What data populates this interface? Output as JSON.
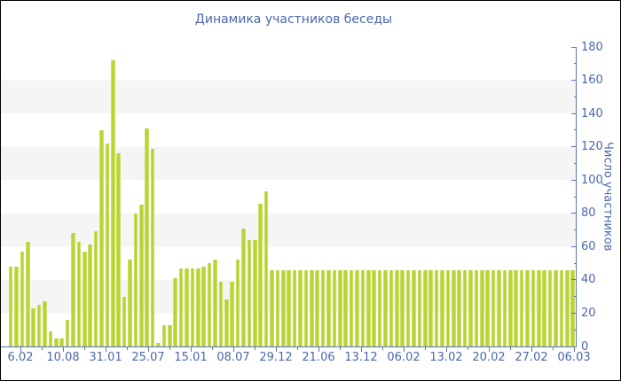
{
  "title": "Динамика участников беседы",
  "y_axis": {
    "label": "Число участников",
    "min": 0,
    "max": 180,
    "major_step": 20,
    "minor_step": 10,
    "tick_labels": [
      "0",
      "20",
      "40",
      "60",
      "80",
      "100",
      "120",
      "140",
      "160",
      "180"
    ]
  },
  "x_axis": {
    "labels": [
      "6.02",
      "10.08",
      "31.01",
      "25.07",
      "15.01",
      "08.07",
      "29.12",
      "21.06",
      "13.12",
      "06.02",
      "13.02",
      "20.02",
      "27.02",
      "06.03"
    ]
  },
  "colors": {
    "bar": "#b6d42d",
    "bar_edge": "#d7e58a",
    "band": "#f5f5f5",
    "axis": "#5b74b8",
    "text": "#4a68ae",
    "frame": "#000000",
    "background": "#ffffff"
  },
  "chart_data": {
    "type": "bar",
    "title": "Динамика участников беседы",
    "xlabel": "",
    "ylabel": "Число участников",
    "ylim": [
      0,
      180
    ],
    "grid": "alternating horizontal bands of 20 units",
    "legend": "none",
    "x_tick_labels": [
      "6.02",
      "10.08",
      "31.01",
      "25.07",
      "15.01",
      "08.07",
      "29.12",
      "21.06",
      "13.12",
      "06.02",
      "13.02",
      "20.02",
      "27.02",
      "06.03"
    ],
    "values": [
      48,
      48,
      57,
      63,
      23,
      25,
      27,
      9,
      5,
      5,
      16,
      68,
      63,
      57,
      61,
      69,
      130,
      122,
      172,
      116,
      30,
      52,
      80,
      85,
      131,
      119,
      2,
      13,
      13,
      41,
      47,
      47,
      47,
      47,
      48,
      50,
      52,
      39,
      28,
      39,
      52,
      71,
      64,
      64,
      86,
      93,
      46,
      46,
      46,
      46,
      46,
      46,
      46,
      46,
      46,
      46,
      46,
      46,
      46,
      46,
      46,
      46,
      46,
      46,
      46,
      46,
      46,
      46,
      46,
      46,
      46,
      46,
      46,
      46,
      46,
      46,
      46,
      46,
      46,
      46,
      46,
      46,
      46,
      46,
      46,
      46,
      46,
      46,
      46,
      46,
      46,
      46,
      46,
      46,
      46,
      46,
      46,
      46,
      46,
      46
    ]
  }
}
